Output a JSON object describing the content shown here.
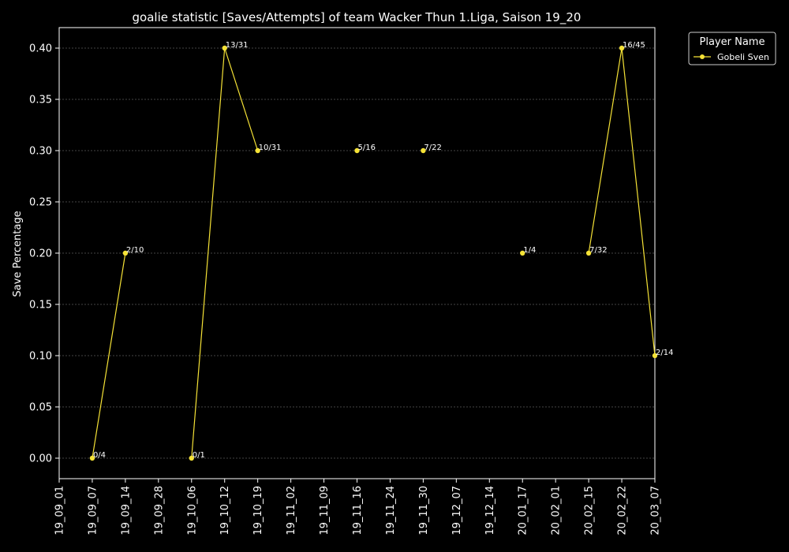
{
  "chart_data": {
    "type": "line",
    "title": "goalie statistic [Saves/Attempts] of team Wacker Thun 1.Liga, Saison 19_20",
    "xlabel": "",
    "ylabel": "Save Percentage",
    "categories": [
      "19_09_01",
      "19_09_07",
      "19_09_14",
      "19_09_28",
      "19_10_06",
      "19_10_12",
      "19_10_19",
      "19_11_02",
      "19_11_09",
      "19_11_16",
      "19_11_24",
      "19_11_30",
      "19_12_07",
      "19_12_14",
      "20_01_17",
      "20_02_01",
      "20_02_15",
      "20_02_22",
      "20_03_07"
    ],
    "y_ticks": [
      "0.00",
      "0.05",
      "0.10",
      "0.15",
      "0.20",
      "0.25",
      "0.30",
      "0.35",
      "0.40"
    ],
    "ylim": [
      -0.02,
      0.42
    ],
    "grid": true,
    "legend": {
      "title": "Player Name",
      "placement": "outside-top-right"
    },
    "series": [
      {
        "name": "Gobeli Sven",
        "color": "#f5e236",
        "values": [
          null,
          0.0,
          0.2,
          null,
          0.0,
          0.4,
          0.3,
          null,
          null,
          0.3,
          null,
          0.3,
          null,
          null,
          0.2,
          null,
          0.2,
          0.4,
          0.1
        ],
        "labels": [
          null,
          "0/4",
          "2/10",
          null,
          "0/1",
          "13/31",
          "10/31",
          null,
          null,
          "5/16",
          null,
          "7/22",
          null,
          null,
          "1/4",
          null,
          "7/32",
          "16/45",
          "2/14"
        ]
      }
    ]
  }
}
